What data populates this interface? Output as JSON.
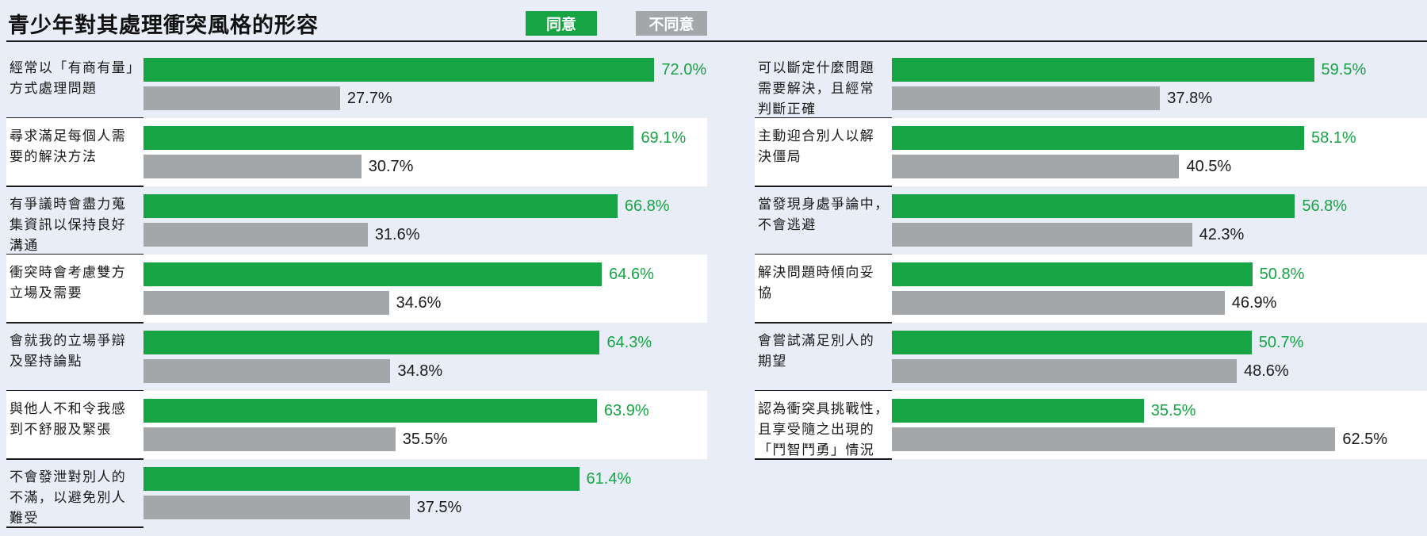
{
  "title": "青少年對其處理衝突風格的形容",
  "legend": {
    "agree": "同意",
    "disagree": "不同意"
  },
  "colors": {
    "agree": "#17a444",
    "disagree": "#a3a7a9",
    "background": "#e9edf7"
  },
  "chart_data": {
    "type": "bar",
    "orientation": "horizontal",
    "title": "青少年對其處理衝突風格的形容",
    "series": [
      {
        "name": "同意",
        "color": "#17a444"
      },
      {
        "name": "不同意",
        "color": "#a3a7a9"
      }
    ],
    "panels": [
      {
        "rows": [
          {
            "label": [
              "經常以「有商有量」",
              "方式處理問題"
            ],
            "agree": "72.0%",
            "disagree": "27.7%"
          },
          {
            "label": [
              "尋求滿足每個人需",
              "要的解決方法"
            ],
            "agree": "69.1%",
            "disagree": "30.7%"
          },
          {
            "label": [
              "有爭議時會盡力蒐",
              "集資訊以保持良好",
              "溝通"
            ],
            "agree": "66.8%",
            "disagree": "31.6%"
          },
          {
            "label": [
              "衝突時會考慮雙方",
              "立場及需要"
            ],
            "agree": "64.6%",
            "disagree": "34.6%"
          },
          {
            "label": [
              "會就我的立場爭辯",
              "及堅持論點"
            ],
            "agree": "64.3%",
            "disagree": "34.8%"
          },
          {
            "label": [
              "與他人不和令我感",
              "到不舒服及緊張"
            ],
            "agree": "63.9%",
            "disagree": "35.5%"
          },
          {
            "label": [
              "不會發泄對別人的",
              "不滿，以避免別人",
              "難受"
            ],
            "agree": "61.4%",
            "disagree": "37.5%"
          }
        ]
      },
      {
        "rows": [
          {
            "label": [
              "可以斷定什麼問題",
              "需要解決，且經常",
              "判斷正確"
            ],
            "agree": "59.5%",
            "disagree": "37.8%"
          },
          {
            "label": [
              "主動迎合別人以解",
              "決僵局"
            ],
            "agree": "58.1%",
            "disagree": "40.5%"
          },
          {
            "label": [
              "當發現身處爭論中，",
              "不會逃避"
            ],
            "agree": "56.8%",
            "disagree": "42.3%"
          },
          {
            "label": [
              "解決問題時傾向妥",
              "協"
            ],
            "agree": "50.8%",
            "disagree": "46.9%"
          },
          {
            "label": [
              "會嘗試滿足別人的",
              "期望"
            ],
            "agree": "50.7%",
            "disagree": "48.6%"
          },
          {
            "label": [
              "認為衝突具挑戰性，",
              "且享受隨之出現的",
              "「鬥智鬥勇」情況"
            ],
            "agree": "35.5%",
            "disagree": "62.5%"
          }
        ]
      }
    ]
  }
}
